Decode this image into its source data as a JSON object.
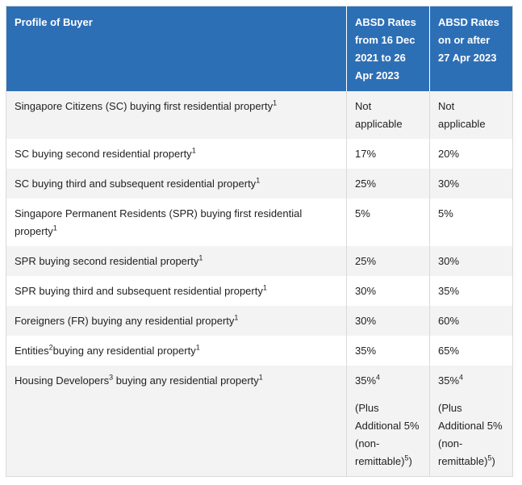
{
  "headers": {
    "profile": "Profile of Buyer",
    "rate_before": "ABSD Rates from 16 Dec 2021 to 26 Apr 2023",
    "rate_after": "ABSD Rates on or after 27 Apr 2023"
  },
  "rows": [
    {
      "profile": "Singapore Citizens (SC) buying first residential property",
      "fn": "1",
      "before": "Not applicable",
      "after": "Not applicable"
    },
    {
      "profile": "SC buying second residential property",
      "fn": "1",
      "before": "17%",
      "after": "20%"
    },
    {
      "profile": "SC buying third and subsequent residential property",
      "fn": "1",
      "before": "25%",
      "after": "30%"
    },
    {
      "profile": "Singapore Permanent Residents (SPR) buying first residential property",
      "fn": "1",
      "before": "5%",
      "after": "5%"
    },
    {
      "profile": "SPR buying second residential property",
      "fn": "1",
      "before": "25%",
      "after": "30%"
    },
    {
      "profile": "SPR buying third and subsequent residential property",
      "fn": "1",
      "before": "30%",
      "after": "35%"
    },
    {
      "profile": "Foreigners (FR) buying any residential property",
      "fn": "1",
      "before": "30%",
      "after": "60%"
    },
    {
      "profile_pre": "Entities",
      "profile_pre_fn": "2",
      "profile": "buying any residential property",
      "fn": "1",
      "before": "35%",
      "after": "65%"
    },
    {
      "profile_pre": "Housing Developers",
      "profile_pre_fn": "3",
      "profile": " buying any residential property",
      "fn": "1",
      "before": "35%",
      "before_fn": "4",
      "after": "35%",
      "after_fn": "4",
      "note": "(Plus Additional 5% (non-remittable)",
      "note_fn": "5",
      "note_close": ")"
    }
  ]
}
